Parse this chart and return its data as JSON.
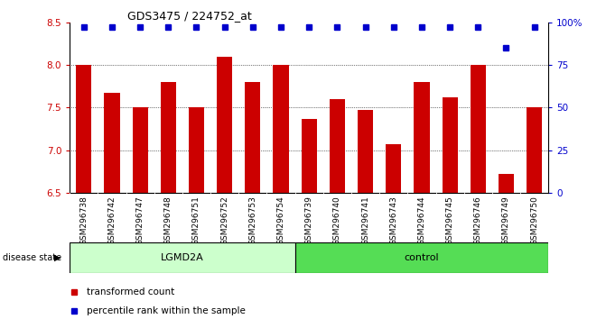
{
  "title": "GDS3475 / 224752_at",
  "samples": [
    "GSM296738",
    "GSM296742",
    "GSM296747",
    "GSM296748",
    "GSM296751",
    "GSM296752",
    "GSM296753",
    "GSM296754",
    "GSM296739",
    "GSM296740",
    "GSM296741",
    "GSM296743",
    "GSM296744",
    "GSM296745",
    "GSM296746",
    "GSM296749",
    "GSM296750"
  ],
  "bar_values": [
    8.0,
    7.67,
    7.5,
    7.8,
    7.5,
    8.1,
    7.8,
    8.0,
    7.37,
    7.6,
    7.47,
    7.07,
    7.8,
    7.62,
    8.0,
    6.72,
    7.5
  ],
  "percentile_values": [
    100,
    100,
    100,
    100,
    100,
    100,
    100,
    100,
    100,
    100,
    100,
    100,
    100,
    100,
    100,
    85,
    100
  ],
  "bar_color": "#cc0000",
  "percentile_color": "#0000cc",
  "ylim": [
    6.5,
    8.5
  ],
  "yticks": [
    6.5,
    7.0,
    7.5,
    8.0,
    8.5
  ],
  "right_yticks": [
    0,
    25,
    50,
    75,
    100
  ],
  "right_ylim": [
    0,
    100
  ],
  "right_tick_labels": [
    "0",
    "25",
    "50",
    "75",
    "100%"
  ],
  "gridlines": [
    7.0,
    7.5,
    8.0
  ],
  "groups": [
    {
      "label": "LGMD2A",
      "start": 0,
      "end": 8,
      "color": "#ccffcc"
    },
    {
      "label": "control",
      "start": 8,
      "end": 17,
      "color": "#55dd55"
    }
  ],
  "disease_state_label": "disease state",
  "legend_items": [
    {
      "label": "transformed count",
      "color": "#cc0000"
    },
    {
      "label": "percentile rank within the sample",
      "color": "#0000cc"
    }
  ],
  "tick_label_fontsize": 6.5,
  "bar_width": 0.55,
  "xtick_bg_color": "#c8c8c8",
  "n_samples": 17,
  "lgmd2a_count": 8,
  "control_count": 9
}
